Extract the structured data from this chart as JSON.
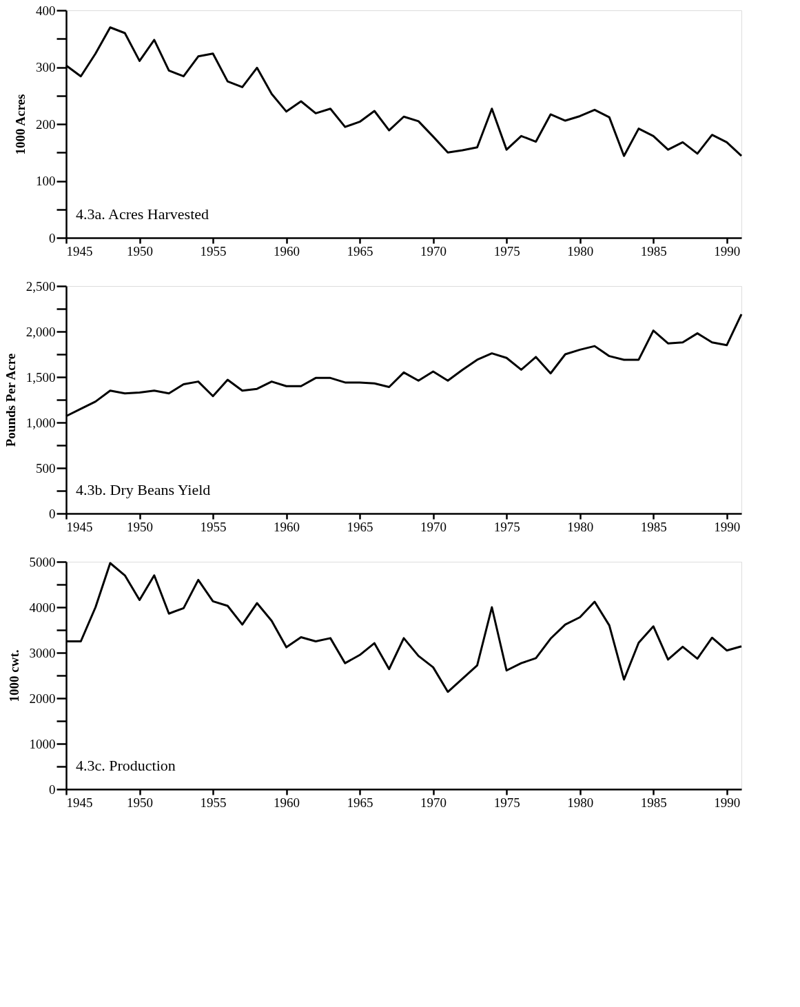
{
  "chart_data": [
    {
      "type": "line",
      "title": "4.3a.  Acres Harvested",
      "ylabel": "1000 Acres",
      "xlim": [
        1945,
        1991
      ],
      "ylim": [
        0,
        400
      ],
      "grid": false,
      "line_style": "solid",
      "marker": "none",
      "xticks": [
        1945,
        1950,
        1955,
        1960,
        1965,
        1970,
        1975,
        1980,
        1985,
        1990
      ],
      "yticks": [
        0,
        {
          "value": 50,
          "label": null
        },
        100,
        {
          "value": 150,
          "label": null
        },
        200,
        {
          "value": 250,
          "label": null
        },
        300,
        {
          "value": 350,
          "label": null
        },
        400
      ],
      "x": [
        1945,
        1946,
        1947,
        1948,
        1949,
        1950,
        1951,
        1952,
        1953,
        1954,
        1955,
        1956,
        1957,
        1958,
        1959,
        1960,
        1961,
        1962,
        1963,
        1964,
        1965,
        1966,
        1967,
        1968,
        1969,
        1970,
        1971,
        1972,
        1973,
        1974,
        1975,
        1976,
        1977,
        1978,
        1979,
        1980,
        1981,
        1982,
        1983,
        1984,
        1985,
        1986,
        1987,
        1988,
        1989,
        1990,
        1991
      ],
      "series": [
        {
          "color": "#000000",
          "values": [
            303,
            284,
            324,
            370,
            360,
            311,
            348,
            294,
            284,
            319,
            324,
            275,
            265,
            299,
            253,
            222,
            240,
            219,
            227,
            195,
            204,
            223,
            189,
            213,
            205,
            178,
            150,
            154,
            159,
            227,
            155,
            179,
            169,
            217,
            206,
            214,
            225,
            212,
            144,
            192,
            179,
            155,
            168,
            148,
            181,
            168,
            144
          ]
        }
      ]
    },
    {
      "type": "line",
      "title": "4.3b.  Dry Beans Yield",
      "ylabel": "Pounds Per Acre",
      "xlim": [
        1945,
        1991
      ],
      "ylim": [
        0,
        2500
      ],
      "grid": false,
      "line_style": "solid",
      "marker": "none",
      "xticks": [
        1945,
        1950,
        1955,
        1960,
        1965,
        1970,
        1975,
        1980,
        1985,
        1990
      ],
      "yticks": [
        0,
        {
          "value": 250,
          "label": null
        },
        500,
        {
          "value": 750,
          "label": null
        },
        {
          "value": 1000,
          "label": "1,000"
        },
        {
          "value": 1250,
          "label": null
        },
        {
          "value": 1500,
          "label": "1,500"
        },
        {
          "value": 1750,
          "label": null
        },
        {
          "value": 2000,
          "label": "2,000"
        },
        {
          "value": 2250,
          "label": null
        },
        {
          "value": 2500,
          "label": "2,500"
        }
      ],
      "x": [
        1945,
        1946,
        1947,
        1948,
        1949,
        1950,
        1951,
        1952,
        1953,
        1954,
        1955,
        1956,
        1957,
        1958,
        1959,
        1960,
        1961,
        1962,
        1963,
        1964,
        1965,
        1966,
        1967,
        1968,
        1969,
        1970,
        1971,
        1972,
        1973,
        1974,
        1975,
        1976,
        1977,
        1978,
        1979,
        1980,
        1981,
        1982,
        1983,
        1984,
        1985,
        1986,
        1987,
        1988,
        1989,
        1990,
        1991
      ],
      "series": [
        {
          "color": "#000000",
          "values": [
            1070,
            1150,
            1230,
            1350,
            1320,
            1330,
            1350,
            1320,
            1420,
            1450,
            1290,
            1470,
            1350,
            1370,
            1450,
            1400,
            1400,
            1490,
            1490,
            1440,
            1440,
            1430,
            1390,
            1550,
            1460,
            1560,
            1460,
            1580,
            1690,
            1760,
            1710,
            1580,
            1720,
            1540,
            1750,
            1800,
            1840,
            1730,
            1690,
            1690,
            2010,
            1870,
            1880,
            1980,
            1880,
            1850,
            2190
          ]
        }
      ]
    },
    {
      "type": "line",
      "title": "4.3c.  Production",
      "ylabel": "1000 cwt.",
      "xlim": [
        1945,
        1991
      ],
      "ylim": [
        0,
        5000
      ],
      "grid": false,
      "line_style": "solid",
      "marker": "none",
      "xticks": [
        1945,
        1950,
        1955,
        1960,
        1965,
        1970,
        1975,
        1980,
        1985,
        1990
      ],
      "yticks": [
        0,
        {
          "value": 500,
          "label": null
        },
        1000,
        {
          "value": 1500,
          "label": null
        },
        2000,
        {
          "value": 2500,
          "label": null
        },
        3000,
        {
          "value": 3500,
          "label": null
        },
        4000,
        {
          "value": 4500,
          "label": null
        },
        5000
      ],
      "x": [
        1945,
        1946,
        1947,
        1948,
        1949,
        1950,
        1951,
        1952,
        1953,
        1954,
        1955,
        1956,
        1957,
        1958,
        1959,
        1960,
        1961,
        1962,
        1963,
        1964,
        1965,
        1966,
        1967,
        1968,
        1969,
        1970,
        1971,
        1972,
        1973,
        1974,
        1975,
        1976,
        1977,
        1978,
        1979,
        1980,
        1981,
        1982,
        1983,
        1984,
        1985,
        1986,
        1987,
        1988,
        1989,
        1990,
        1991
      ],
      "series": [
        {
          "color": "#000000",
          "values": [
            3250,
            3250,
            4000,
            4970,
            4700,
            4160,
            4700,
            3860,
            3980,
            4600,
            4130,
            4030,
            3620,
            4090,
            3700,
            3120,
            3340,
            3250,
            3320,
            2770,
            2950,
            3210,
            2640,
            3320,
            2930,
            2680,
            2140,
            2430,
            2720,
            4000,
            2610,
            2770,
            2880,
            3310,
            3620,
            3780,
            4120,
            3600,
            2410,
            3220,
            3580,
            2850,
            3130,
            2870,
            3330,
            3050,
            3140
          ]
        }
      ]
    }
  ]
}
